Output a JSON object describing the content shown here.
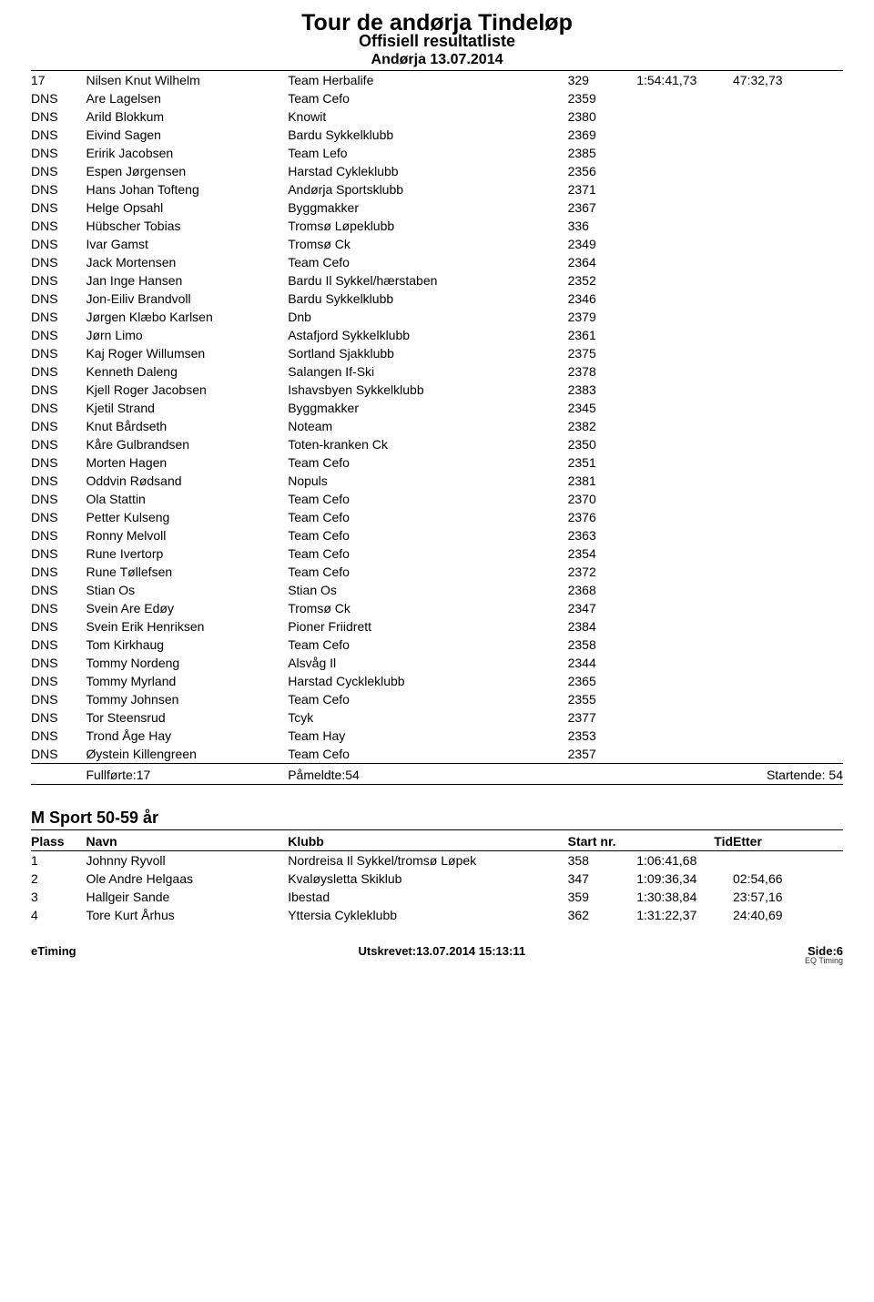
{
  "header": {
    "title": "Tour de andørja Tindeløp",
    "subtitle": "Offisiell resultatliste",
    "date": "Andørja 13.07.2014"
  },
  "columns": {
    "place": "Plass",
    "name": "Navn",
    "club": "Klubb",
    "start": "Start nr.",
    "time": "Tid",
    "diff": "Etter"
  },
  "main_results": [
    {
      "place": "17",
      "name": "Nilsen Knut Wilhelm",
      "club": "Team Herbalife",
      "start": "329",
      "time": "1:54:41,73",
      "diff": "47:32,73"
    },
    {
      "place": "DNS",
      "name": "Are Lagelsen",
      "club": "Team Cefo",
      "start": "2359",
      "time": "",
      "diff": ""
    },
    {
      "place": "DNS",
      "name": "Arild Blokkum",
      "club": "Knowit",
      "start": "2380",
      "time": "",
      "diff": ""
    },
    {
      "place": "DNS",
      "name": "Eivind Sagen",
      "club": "Bardu Sykkelklubb",
      "start": "2369",
      "time": "",
      "diff": ""
    },
    {
      "place": "DNS",
      "name": "Eririk Jacobsen",
      "club": "Team Lefo",
      "start": "2385",
      "time": "",
      "diff": ""
    },
    {
      "place": "DNS",
      "name": "Espen Jørgensen",
      "club": "Harstad Cykleklubb",
      "start": "2356",
      "time": "",
      "diff": ""
    },
    {
      "place": "DNS",
      "name": "Hans Johan Tofteng",
      "club": "Andørja Sportsklubb",
      "start": "2371",
      "time": "",
      "diff": ""
    },
    {
      "place": "DNS",
      "name": "Helge Opsahl",
      "club": "Byggmakker",
      "start": "2367",
      "time": "",
      "diff": ""
    },
    {
      "place": "DNS",
      "name": "Hübscher Tobias",
      "club": "Tromsø Løpeklubb",
      "start": "336",
      "time": "",
      "diff": ""
    },
    {
      "place": "DNS",
      "name": "Ivar Gamst",
      "club": "Tromsø Ck",
      "start": "2349",
      "time": "",
      "diff": ""
    },
    {
      "place": "DNS",
      "name": "Jack Mortensen",
      "club": "Team Cefo",
      "start": "2364",
      "time": "",
      "diff": ""
    },
    {
      "place": "DNS",
      "name": "Jan Inge Hansen",
      "club": "Bardu Il Sykkel/hærstaben",
      "start": "2352",
      "time": "",
      "diff": ""
    },
    {
      "place": "DNS",
      "name": "Jon-Eiliv Brandvoll",
      "club": "Bardu Sykkelklubb",
      "start": "2346",
      "time": "",
      "diff": ""
    },
    {
      "place": "DNS",
      "name": "Jørgen Klæbo Karlsen",
      "club": "Dnb",
      "start": "2379",
      "time": "",
      "diff": ""
    },
    {
      "place": "DNS",
      "name": "Jørn Limo",
      "club": "Astafjord Sykkelklubb",
      "start": "2361",
      "time": "",
      "diff": ""
    },
    {
      "place": "DNS",
      "name": "Kaj Roger Willumsen",
      "club": "Sortland Sjakklubb",
      "start": "2375",
      "time": "",
      "diff": ""
    },
    {
      "place": "DNS",
      "name": "Kenneth Daleng",
      "club": "Salangen If-Ski",
      "start": "2378",
      "time": "",
      "diff": ""
    },
    {
      "place": "DNS",
      "name": "Kjell Roger Jacobsen",
      "club": "Ishavsbyen Sykkelklubb",
      "start": "2383",
      "time": "",
      "diff": ""
    },
    {
      "place": "DNS",
      "name": "Kjetil Strand",
      "club": "Byggmakker",
      "start": "2345",
      "time": "",
      "diff": ""
    },
    {
      "place": "DNS",
      "name": "Knut Bårdseth",
      "club": "Noteam",
      "start": "2382",
      "time": "",
      "diff": ""
    },
    {
      "place": "DNS",
      "name": "Kåre Gulbrandsen",
      "club": "Toten-kranken Ck",
      "start": "2350",
      "time": "",
      "diff": ""
    },
    {
      "place": "DNS",
      "name": "Morten Hagen",
      "club": "Team Cefo",
      "start": "2351",
      "time": "",
      "diff": ""
    },
    {
      "place": "DNS",
      "name": "Oddvin Rødsand",
      "club": "Nopuls",
      "start": "2381",
      "time": "",
      "diff": ""
    },
    {
      "place": "DNS",
      "name": "Ola Stattin",
      "club": "Team Cefo",
      "start": "2370",
      "time": "",
      "diff": ""
    },
    {
      "place": "DNS",
      "name": "Petter Kulseng",
      "club": "Team Cefo",
      "start": "2376",
      "time": "",
      "diff": ""
    },
    {
      "place": "DNS",
      "name": "Ronny Melvoll",
      "club": "Team Cefo",
      "start": "2363",
      "time": "",
      "diff": ""
    },
    {
      "place": "DNS",
      "name": "Rune Ivertorp",
      "club": "Team Cefo",
      "start": "2354",
      "time": "",
      "diff": ""
    },
    {
      "place": "DNS",
      "name": "Rune Tøllefsen",
      "club": "Team Cefo",
      "start": "2372",
      "time": "",
      "diff": ""
    },
    {
      "place": "DNS",
      "name": "Stian Os",
      "club": "Stian Os",
      "start": "2368",
      "time": "",
      "diff": ""
    },
    {
      "place": "DNS",
      "name": "Svein Are Edøy",
      "club": "Tromsø Ck",
      "start": "2347",
      "time": "",
      "diff": ""
    },
    {
      "place": "DNS",
      "name": "Svein Erik Henriksen",
      "club": "Pioner Friidrett",
      "start": "2384",
      "time": "",
      "diff": ""
    },
    {
      "place": "DNS",
      "name": "Tom Kirkhaug",
      "club": "Team Cefo",
      "start": "2358",
      "time": "",
      "diff": ""
    },
    {
      "place": "DNS",
      "name": "Tommy Nordeng",
      "club": "Alsvåg Il",
      "start": "2344",
      "time": "",
      "diff": ""
    },
    {
      "place": "DNS",
      "name": "Tommy Myrland",
      "club": "Harstad Cyckleklubb",
      "start": "2365",
      "time": "",
      "diff": ""
    },
    {
      "place": "DNS",
      "name": "Tommy Johnsen",
      "club": "Team Cefo",
      "start": "2355",
      "time": "",
      "diff": ""
    },
    {
      "place": "DNS",
      "name": "Tor Steensrud",
      "club": "Tcyk",
      "start": "2377",
      "time": "",
      "diff": ""
    },
    {
      "place": "DNS",
      "name": "Trond Åge Hay",
      "club": "Team Hay",
      "start": "2353",
      "time": "",
      "diff": ""
    },
    {
      "place": "DNS",
      "name": "Øystein Killengreen",
      "club": "Team Cefo",
      "start": "2357",
      "time": "",
      "diff": ""
    }
  ],
  "summary": {
    "completed": "Fullførte:17",
    "registered": "Påmeldte:54",
    "starting": "Startende: 54"
  },
  "category2": {
    "title": "M Sport 50-59 år",
    "rows": [
      {
        "place": "1",
        "name": "Johnny Ryvoll",
        "club": "Nordreisa Il Sykkel/tromsø Løpek",
        "start": "358",
        "time": "1:06:41,68",
        "diff": ""
      },
      {
        "place": "2",
        "name": "Ole Andre Helgaas",
        "club": "Kvaløysletta Skiklub",
        "start": "347",
        "time": "1:09:36,34",
        "diff": "02:54,66"
      },
      {
        "place": "3",
        "name": "Hallgeir Sande",
        "club": "Ibestad",
        "start": "359",
        "time": "1:30:38,84",
        "diff": "23:57,16"
      },
      {
        "place": "4",
        "name": "Tore Kurt Århus",
        "club": "Yttersia Cykleklubb",
        "start": "362",
        "time": "1:31:22,37",
        "diff": "24:40,69"
      }
    ]
  },
  "footer": {
    "left": "eTiming",
    "center": "Utskrevet:13.07.2014 15:13:11",
    "right": "Side:6",
    "tiny": "EQ Timing"
  }
}
